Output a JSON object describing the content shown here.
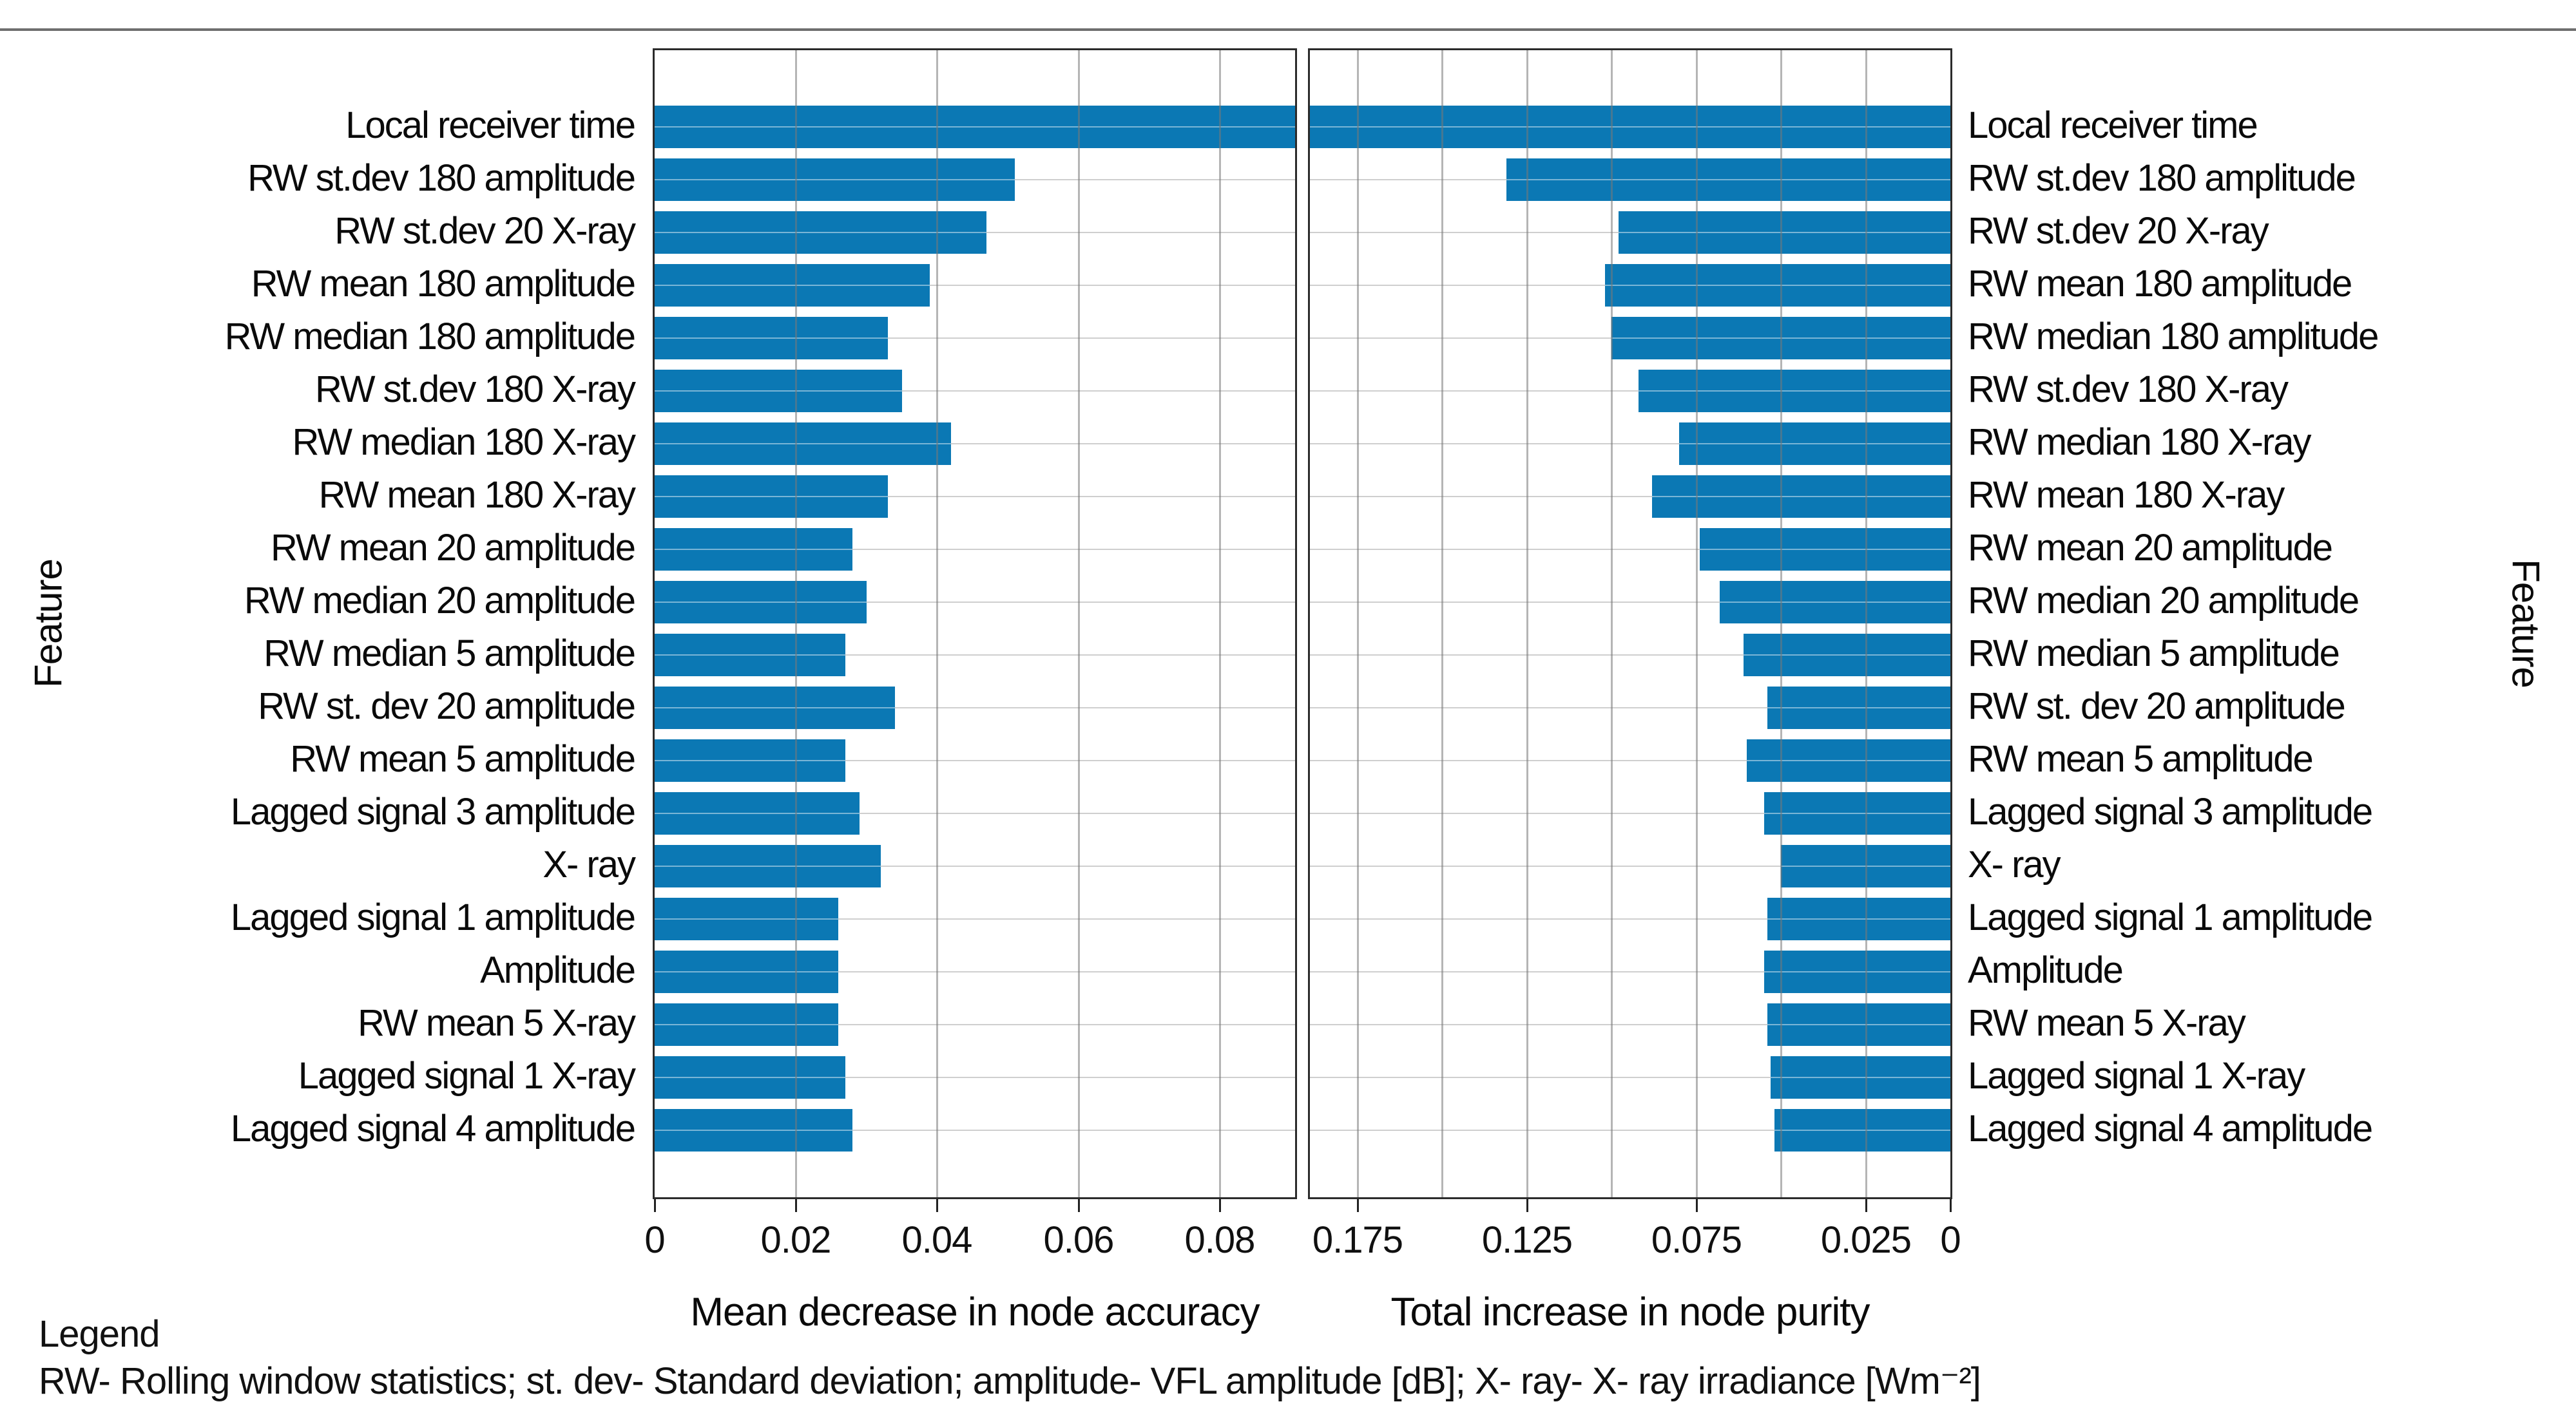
{
  "chart_data": {
    "type": "bar",
    "orientation": "horizontal",
    "title": "",
    "categories": [
      "Local receiver time",
      "RW st.dev 180 amplitude",
      "RW st.dev 20 X-ray",
      "RW mean 180 amplitude",
      "RW median 180 amplitude",
      "RW st.dev 180 X-ray",
      "RW median 180 X-ray",
      "RW mean 180 X-ray",
      "RW mean 20 amplitude",
      "RW median 20 amplitude",
      "RW median 5 amplitude",
      "RW st. dev 20 amplitude",
      "RW mean 5 amplitude",
      "Lagged signal 3 amplitude",
      "X- ray",
      "Lagged signal 1 amplitude",
      "Amplitude",
      "RW mean 5 X-ray",
      "Lagged signal 1 X-ray",
      "Lagged signal 4 amplitude"
    ],
    "ylabel_left": "Feature",
    "ylabel_right": "Feature",
    "bar_color": "#0b78b4",
    "grid_on": true,
    "legend_title": "Legend",
    "legend_text": "RW- Rolling window statistics; st. dev- Standard deviation; amplitude- VFL amplitude [dB]; X- ray- X- ray irradiance [Wm⁻²]",
    "panels": [
      {
        "title": "Mean decrease in node accuracy",
        "side": "left",
        "reversed": false,
        "xlim": [
          0,
          0.0907
        ],
        "tick_values": [
          0,
          0.02,
          0.04,
          0.06,
          0.08
        ],
        "tick_labels": [
          "0",
          "0.02",
          "0.04",
          "0.06",
          "0.08"
        ],
        "gridline_values": [
          0.02,
          0.04,
          0.06,
          0.08
        ],
        "values": [
          0.091,
          0.051,
          0.047,
          0.039,
          0.033,
          0.035,
          0.042,
          0.033,
          0.028,
          0.03,
          0.027,
          0.034,
          0.027,
          0.029,
          0.032,
          0.026,
          0.026,
          0.026,
          0.027,
          0.028
        ]
      },
      {
        "title": "Total increase in node purity",
        "side": "right",
        "reversed": true,
        "xlim": [
          0,
          0.189
        ],
        "tick_values": [
          0.175,
          0.125,
          0.075,
          0.025,
          0
        ],
        "tick_labels": [
          "0.175",
          "0.125",
          "0.075",
          "0.025",
          "0"
        ],
        "gridline_values": [
          0.175,
          0.15,
          0.125,
          0.1,
          0.075,
          0.05,
          0.025
        ],
        "values": [
          0.189,
          0.131,
          0.098,
          0.102,
          0.1,
          0.092,
          0.08,
          0.088,
          0.074,
          0.068,
          0.061,
          0.054,
          0.06,
          0.055,
          0.05,
          0.054,
          0.055,
          0.054,
          0.053,
          0.052
        ]
      }
    ]
  }
}
